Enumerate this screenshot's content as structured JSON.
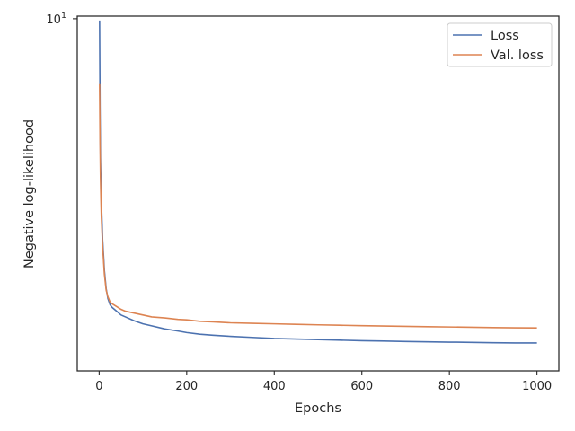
{
  "chart_data": {
    "type": "line",
    "xlabel": "Epochs",
    "ylabel": "Negative log-likelihood",
    "y_scale": "log",
    "xlim": [
      -50,
      1050
    ],
    "ylim": [
      1.32,
      10.15
    ],
    "x_ticks": [
      0,
      200,
      400,
      600,
      800,
      1000
    ],
    "x_tick_labels": [
      "0",
      "200",
      "400",
      "600",
      "800",
      "1000"
    ],
    "y_tick_value": 10,
    "y_tick_label_base": "10",
    "y_tick_label_exp": "1",
    "grid": false,
    "legend_position": "top-right",
    "series": [
      {
        "name": "Loss",
        "color": "#4c72b0",
        "points": [
          [
            1,
            9.9
          ],
          [
            2,
            6.0
          ],
          [
            3,
            4.5
          ],
          [
            5,
            3.5
          ],
          [
            8,
            2.8
          ],
          [
            12,
            2.35
          ],
          [
            16,
            2.12
          ],
          [
            20,
            2.0
          ],
          [
            25,
            1.93
          ],
          [
            30,
            1.9
          ],
          [
            40,
            1.86
          ],
          [
            50,
            1.82
          ],
          [
            60,
            1.8
          ],
          [
            80,
            1.76
          ],
          [
            100,
            1.73
          ],
          [
            120,
            1.71
          ],
          [
            150,
            1.68
          ],
          [
            180,
            1.66
          ],
          [
            200,
            1.645
          ],
          [
            230,
            1.63
          ],
          [
            260,
            1.62
          ],
          [
            300,
            1.61
          ],
          [
            350,
            1.6
          ],
          [
            400,
            1.59
          ],
          [
            450,
            1.585
          ],
          [
            500,
            1.58
          ],
          [
            550,
            1.575
          ],
          [
            600,
            1.57
          ],
          [
            650,
            1.567
          ],
          [
            700,
            1.563
          ],
          [
            750,
            1.56
          ],
          [
            800,
            1.557
          ],
          [
            850,
            1.555
          ],
          [
            900,
            1.552
          ],
          [
            950,
            1.55
          ],
          [
            1000,
            1.55
          ]
        ]
      },
      {
        "name": "Val. loss",
        "color": "#dd8452",
        "points": [
          [
            1,
            6.9
          ],
          [
            2,
            5.0
          ],
          [
            3,
            4.0
          ],
          [
            5,
            3.2
          ],
          [
            8,
            2.7
          ],
          [
            12,
            2.3
          ],
          [
            16,
            2.1
          ],
          [
            20,
            2.02
          ],
          [
            25,
            1.96
          ],
          [
            30,
            1.94
          ],
          [
            40,
            1.91
          ],
          [
            50,
            1.88
          ],
          [
            60,
            1.86
          ],
          [
            80,
            1.84
          ],
          [
            100,
            1.82
          ],
          [
            120,
            1.8
          ],
          [
            150,
            1.79
          ],
          [
            180,
            1.775
          ],
          [
            200,
            1.77
          ],
          [
            230,
            1.755
          ],
          [
            260,
            1.75
          ],
          [
            300,
            1.74
          ],
          [
            350,
            1.735
          ],
          [
            400,
            1.73
          ],
          [
            450,
            1.725
          ],
          [
            500,
            1.72
          ],
          [
            550,
            1.716
          ],
          [
            600,
            1.712
          ],
          [
            650,
            1.708
          ],
          [
            700,
            1.705
          ],
          [
            750,
            1.702
          ],
          [
            800,
            1.699
          ],
          [
            850,
            1.696
          ],
          [
            900,
            1.693
          ],
          [
            950,
            1.691
          ],
          [
            1000,
            1.69
          ]
        ]
      }
    ]
  }
}
